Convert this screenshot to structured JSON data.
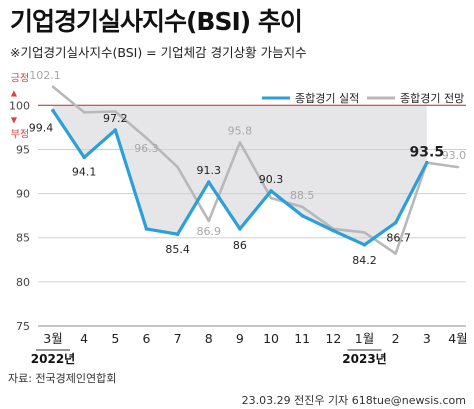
{
  "title": "기업경기실사지수(BSI) 추이",
  "subtitle": "※기업경기실사지수(BSI) = 기업체감 경기상황 가늠지수",
  "source": "자료: 전국경제인연합회",
  "credit": "23.03.29 전진우 기자 618tue@newsis.com",
  "chart_data": {
    "type": "line",
    "categories": [
      "3월",
      "4",
      "5",
      "6",
      "7",
      "8",
      "9",
      "10",
      "11",
      "12",
      "1월",
      "2",
      "3",
      "4월"
    ],
    "year_labels": [
      {
        "label": "2022년",
        "index": 0
      },
      {
        "label": "2023년",
        "index": 10
      }
    ],
    "series": [
      {
        "name": "종합경기 실적",
        "color": "#2b9fd8",
        "values": [
          99.4,
          94.1,
          97.2,
          86.0,
          85.4,
          91.3,
          86.0,
          90.3,
          87.5,
          85.8,
          84.2,
          86.7,
          93.5,
          null
        ],
        "labels": [
          "99.4",
          "94.1",
          "97.2",
          "",
          "85.4",
          "91.3",
          "86",
          "90.3",
          "",
          "",
          "84.2",
          "86.7",
          "93.5",
          ""
        ]
      },
      {
        "name": "종합경기 전망",
        "color": "#b8b8b8",
        "values": [
          102.1,
          99.2,
          99.3,
          96.3,
          93.0,
          86.9,
          95.8,
          89.5,
          88.5,
          86.0,
          85.6,
          83.2,
          93.5,
          93.0
        ],
        "labels": [
          "102.1",
          "",
          "",
          "96.3",
          "",
          "86.9",
          "95.8",
          "",
          "88.5",
          "",
          "",
          "",
          "",
          "93.0"
        ]
      }
    ],
    "ylim": [
      75,
      104
    ],
    "yticks": [
      75,
      80,
      85,
      90,
      95,
      100
    ],
    "reference": {
      "value": 100,
      "above_label": "긍정",
      "below_label": "부정",
      "color": "#d94040"
    },
    "legend_position": "top-right",
    "grid": true
  }
}
